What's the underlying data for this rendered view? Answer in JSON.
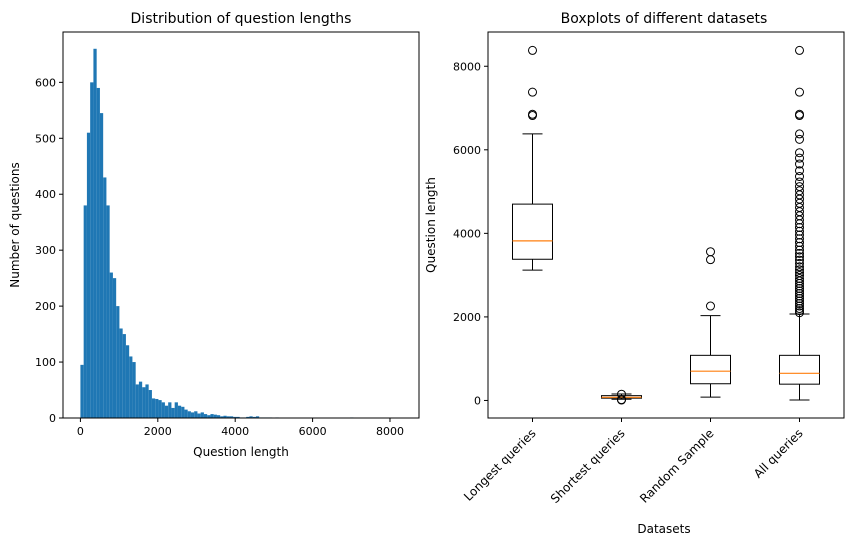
{
  "chart_data": [
    {
      "type": "bar",
      "subtype": "histogram",
      "title": "Distribution of question lengths",
      "xlabel": "Question length",
      "ylabel": "Number of questions",
      "xlim": [
        -450,
        8750
      ],
      "ylim": [
        0,
        690
      ],
      "xticks": [
        0,
        2000,
        4000,
        6000,
        8000
      ],
      "yticks": [
        0,
        100,
        200,
        300,
        400,
        500,
        600
      ],
      "xtick_labels": [
        "0",
        "2000",
        "4000",
        "6000",
        "8000"
      ],
      "ytick_labels": [
        "0",
        "100",
        "200",
        "300",
        "400",
        "500",
        "600"
      ],
      "bin_start": 0,
      "bin_width": 84,
      "color": "#1f77b4",
      "grid": false,
      "values": [
        95,
        380,
        510,
        600,
        660,
        590,
        545,
        430,
        380,
        260,
        250,
        200,
        160,
        150,
        130,
        110,
        100,
        60,
        65,
        55,
        60,
        50,
        35,
        34,
        32,
        28,
        22,
        28,
        18,
        28,
        22,
        20,
        15,
        12,
        10,
        12,
        8,
        10,
        7,
        5,
        7,
        6,
        5,
        3,
        4,
        3,
        3,
        2,
        2,
        1,
        1,
        2,
        3,
        2,
        3,
        1,
        1,
        1,
        1,
        0,
        1,
        0,
        0,
        0,
        0,
        0,
        0,
        0,
        0,
        0,
        0,
        0,
        0,
        0,
        0,
        0,
        0,
        0,
        0,
        0,
        0,
        0,
        0,
        1,
        0,
        0,
        0,
        0,
        0,
        0,
        0,
        0,
        0,
        0,
        0,
        0,
        0,
        0,
        0,
        0
      ]
    },
    {
      "type": "box",
      "title": "Boxplots of different datasets",
      "xlabel": "Datasets",
      "ylabel": "Question length",
      "ylim": [
        -420,
        8820
      ],
      "yticks": [
        0,
        2000,
        4000,
        6000,
        8000
      ],
      "ytick_labels": [
        "0",
        "2000",
        "4000",
        "6000",
        "8000"
      ],
      "categories": [
        "Longest queries",
        "Shortest queries",
        "Random Sample",
        "All queries"
      ],
      "median_color": "#ff7f0e",
      "grid": false,
      "boxes": [
        {
          "whislo": 3120,
          "q1": 3380,
          "med": 3820,
          "q3": 4700,
          "whishi": 6380,
          "fliers": [
            6820,
            6850,
            7380,
            8380
          ]
        },
        {
          "whislo": 30,
          "q1": 55,
          "med": 75,
          "q3": 115,
          "whishi": 155,
          "fliers": [
            10,
            20,
            150
          ]
        },
        {
          "whislo": 80,
          "q1": 400,
          "med": 700,
          "q3": 1080,
          "whishi": 2030,
          "fliers": [
            2260,
            3370,
            3560
          ]
        },
        {
          "whislo": 10,
          "q1": 390,
          "med": 650,
          "q3": 1080,
          "whishi": 2070,
          "fliers": [
            2100,
            2150,
            2200,
            2260,
            2320,
            2380,
            2440,
            2500,
            2560,
            2620,
            2680,
            2740,
            2800,
            2860,
            2920,
            2990,
            3060,
            3130,
            3200,
            3280,
            3360,
            3440,
            3520,
            3600,
            3690,
            3780,
            3870,
            3960,
            4050,
            4140,
            4230,
            4320,
            4420,
            4520,
            4620,
            4720,
            4820,
            4920,
            5020,
            5120,
            5230,
            5360,
            5500,
            5660,
            5800,
            5930,
            6250,
            6380,
            6820,
            6850,
            7380,
            8380
          ]
        }
      ]
    }
  ]
}
